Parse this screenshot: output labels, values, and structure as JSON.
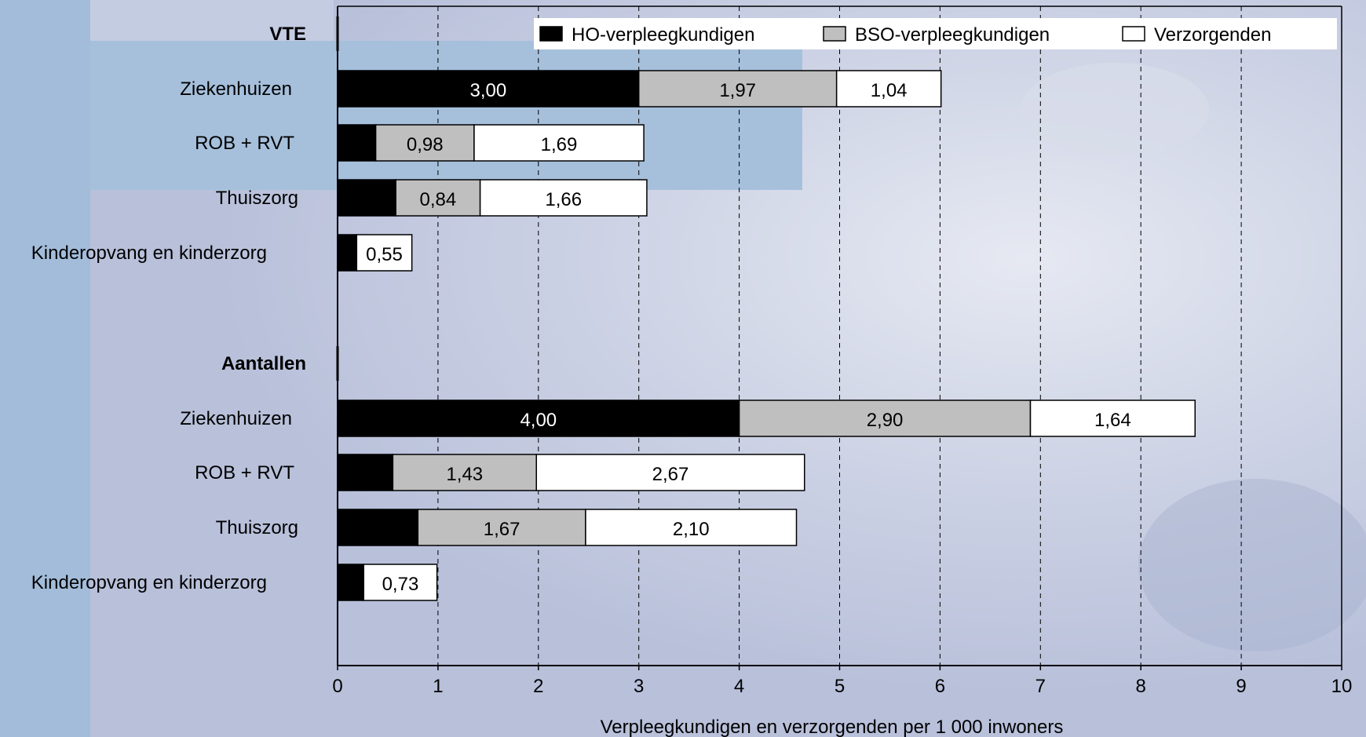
{
  "chart_data": {
    "type": "bar",
    "orientation": "horizontal",
    "stacked": true,
    "title": "",
    "xlabel": "Verpleegkundigen en verzorgenden per 1 000 inwoners",
    "ylabel": "",
    "xlim": [
      0,
      10
    ],
    "x_ticks": [
      "0",
      "1",
      "2",
      "3",
      "4",
      "5",
      "6",
      "7",
      "8",
      "9",
      "10"
    ],
    "grid": "vertical-dashed",
    "legend_position": "top-right",
    "colors": {
      "HO-verpleegkundigen": "#000000",
      "BSO-verpleegkundigen": "#bfbfbf",
      "Verzorgenden": "#ffffff"
    },
    "groups": [
      {
        "label": "VTE",
        "categories": [
          "Ziekenhuizen",
          "ROB + RVT",
          "Thuiszorg",
          "Kinderopvang en kinderzorg"
        ],
        "series": [
          {
            "name": "HO-verpleegkundigen",
            "values": [
              3.0,
              0.38,
              0.58,
              0.19
            ],
            "labels": [
              "3,00",
              "",
              "",
              ""
            ]
          },
          {
            "name": "BSO-verpleegkundigen",
            "values": [
              1.97,
              0.98,
              0.84,
              0.0
            ],
            "labels": [
              "1,97",
              "0,98",
              "0,84",
              ""
            ]
          },
          {
            "name": "Verzorgenden",
            "values": [
              1.04,
              1.69,
              1.66,
              0.55
            ],
            "labels": [
              "1,04",
              "1,69",
              "1,66",
              "0,55"
            ]
          }
        ]
      },
      {
        "label": "Aantallen",
        "categories": [
          "Ziekenhuizen",
          "ROB + RVT",
          "Thuiszorg",
          "Kinderopvang en kinderzorg"
        ],
        "series": [
          {
            "name": "HO-verpleegkundigen",
            "values": [
              4.0,
              0.55,
              0.8,
              0.26
            ],
            "labels": [
              "4,00",
              "",
              "",
              ""
            ]
          },
          {
            "name": "BSO-verpleegkundigen",
            "values": [
              2.9,
              1.43,
              1.67,
              0.0
            ],
            "labels": [
              "2,90",
              "1,43",
              "1,67",
              ""
            ]
          },
          {
            "name": "Verzorgenden",
            "values": [
              1.64,
              2.67,
              2.1,
              0.73
            ],
            "labels": [
              "1,64",
              "2,67",
              "2,10",
              "0,73"
            ]
          }
        ]
      }
    ]
  }
}
